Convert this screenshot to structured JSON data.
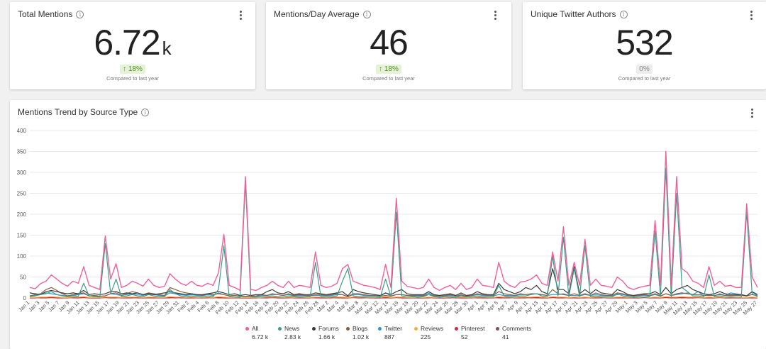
{
  "kpis": [
    {
      "title": "Total Mentions",
      "value": "6.72",
      "unit": "k",
      "change": "↑ 18%",
      "change_type": "up",
      "compare": "Compared to last year"
    },
    {
      "title": "Mentions/Day Average",
      "value": "46",
      "unit": "",
      "change": "↑ 18%",
      "change_type": "up",
      "compare": "Compared to last year"
    },
    {
      "title": "Unique Twitter Authors",
      "value": "532",
      "unit": "",
      "change": "0%",
      "change_type": "neutral",
      "compare": "Compared to last year"
    }
  ],
  "trend": {
    "title": "Mentions Trend by Source Type"
  },
  "legend": [
    {
      "name": "All",
      "total": "6.72 k",
      "color": "#f0619a"
    },
    {
      "name": "News",
      "total": "2.83 k",
      "color": "#3d9c8c"
    },
    {
      "name": "Forums",
      "total": "1.66 k",
      "color": "#3a3a3a"
    },
    {
      "name": "Blogs",
      "total": "1.02 k",
      "color": "#8b5e3c"
    },
    {
      "name": "Twitter",
      "total": "887",
      "color": "#2f97d8"
    },
    {
      "name": "Reviews",
      "total": "225",
      "color": "#f0b040"
    },
    {
      "name": "Pinterest",
      "total": "52",
      "color": "#e0223d"
    },
    {
      "name": "Comments",
      "total": "41",
      "color": "#7a5063"
    }
  ],
  "chart_data": {
    "type": "line",
    "ylim": [
      0,
      400
    ],
    "yticks": [
      0,
      50,
      100,
      150,
      200,
      250,
      300,
      350,
      400
    ],
    "grid": true,
    "legend_position": "bottom",
    "xtick_labels": [
      "Jan 1",
      "Jan 3",
      "Jan 5",
      "Jan 7",
      "Jan 9",
      "Jan 11",
      "Jan 13",
      "Jan 15",
      "Jan 17",
      "Jan 19",
      "Jan 21",
      "Jan 23",
      "Jan 25",
      "Jan 27",
      "Jan 29",
      "Jan 31",
      "Feb 2",
      "Feb 4",
      "Feb 6",
      "Feb 8",
      "Feb 10",
      "Feb 12",
      "Feb 14",
      "Feb 16",
      "Feb 18",
      "Feb 20",
      "Feb 22",
      "Feb 24",
      "Feb 26",
      "Feb 28",
      "Mar 2",
      "Mar 4",
      "Mar 6",
      "Mar 8",
      "Mar 10",
      "Mar 12",
      "Mar 14",
      "Mar 16",
      "Mar 18",
      "Mar 20",
      "Mar 22",
      "Mar 24",
      "Mar 26",
      "Mar 28",
      "Mar 30",
      "Apr 1",
      "Apr 3",
      "Apr 5",
      "Apr 7",
      "Apr 9",
      "Apr 11",
      "Apr 13",
      "Apr 15",
      "Apr 17",
      "Apr 19",
      "Apr 21",
      "Apr 23",
      "Apr 25",
      "Apr 27",
      "Apr 29",
      "May 1",
      "May 3",
      "May 5",
      "May 7",
      "May 9",
      "May 11",
      "May 13",
      "May 15",
      "May 17",
      "May 19",
      "May 21",
      "May 23",
      "May 25",
      "May 27"
    ],
    "series": [
      {
        "name": "All",
        "color": "#f0619a",
        "values": [
          25,
          22,
          34,
          40,
          55,
          45,
          35,
          28,
          40,
          35,
          75,
          30,
          25,
          20,
          148,
          45,
          82,
          25,
          30,
          40,
          35,
          28,
          45,
          30,
          25,
          28,
          58,
          45,
          35,
          30,
          40,
          30,
          28,
          35,
          30,
          60,
          152,
          30,
          25,
          18,
          290,
          20,
          18,
          25,
          30,
          40,
          30,
          25,
          40,
          25,
          30,
          28,
          25,
          110,
          30,
          25,
          28,
          35,
          70,
          80,
          40,
          35,
          30,
          28,
          25,
          20,
          80,
          25,
          238,
          40,
          28,
          25,
          22,
          25,
          45,
          25,
          18,
          25,
          30,
          20,
          35,
          20,
          25,
          45,
          30,
          28,
          25,
          85,
          40,
          30,
          25,
          38,
          40,
          45,
          55,
          35,
          30,
          110,
          40,
          170,
          30,
          85,
          30,
          140,
          30,
          45,
          30,
          28,
          25,
          50,
          40,
          25,
          20,
          25,
          28,
          30,
          185,
          30,
          350,
          30,
          290,
          70,
          60,
          40,
          35,
          25,
          75,
          30,
          40,
          28,
          30,
          25,
          25,
          225,
          50,
          25
        ]
      },
      {
        "name": "News",
        "color": "#3d9c8c",
        "values": [
          3,
          5,
          8,
          10,
          15,
          8,
          5,
          3,
          5,
          4,
          35,
          5,
          3,
          2,
          130,
          10,
          45,
          3,
          5,
          8,
          5,
          3,
          8,
          5,
          3,
          3,
          20,
          10,
          5,
          3,
          5,
          3,
          2,
          5,
          3,
          20,
          125,
          3,
          2,
          1,
          275,
          2,
          2,
          3,
          3,
          5,
          3,
          2,
          5,
          3,
          3,
          2,
          3,
          85,
          3,
          2,
          3,
          5,
          40,
          70,
          5,
          3,
          3,
          2,
          2,
          1,
          45,
          3,
          205,
          5,
          2,
          3,
          1,
          3,
          8,
          3,
          1,
          3,
          3,
          1,
          5,
          2,
          2,
          5,
          3,
          2,
          2,
          30,
          5,
          3,
          2,
          5,
          5,
          8,
          10,
          5,
          3,
          100,
          5,
          145,
          3,
          70,
          3,
          125,
          3,
          5,
          3,
          2,
          2,
          10,
          5,
          2,
          1,
          2,
          2,
          3,
          160,
          3,
          310,
          3,
          250,
          25,
          15,
          5,
          5,
          2,
          55,
          3,
          5,
          2,
          3,
          2,
          2,
          205,
          10,
          3
        ]
      },
      {
        "name": "Forums",
        "color": "#3a3a3a",
        "values": [
          12,
          10,
          8,
          15,
          18,
          15,
          12,
          10,
          12,
          10,
          18,
          8,
          10,
          8,
          10,
          15,
          15,
          10,
          12,
          10,
          12,
          8,
          10,
          8,
          10,
          12,
          15,
          12,
          10,
          8,
          10,
          8,
          8,
          10,
          12,
          15,
          12,
          8,
          10,
          6,
          8,
          6,
          8,
          8,
          15,
          20,
          12,
          10,
          15,
          8,
          10,
          8,
          8,
          12,
          10,
          8,
          10,
          12,
          15,
          5,
          20,
          15,
          12,
          10,
          8,
          6,
          12,
          8,
          15,
          20,
          10,
          8,
          8,
          8,
          15,
          8,
          6,
          8,
          10,
          6,
          12,
          6,
          8,
          15,
          10,
          8,
          8,
          35,
          20,
          15,
          10,
          15,
          25,
          20,
          30,
          15,
          10,
          70,
          20,
          20,
          10,
          75,
          10,
          20,
          10,
          20,
          12,
          10,
          8,
          20,
          15,
          8,
          6,
          8,
          10,
          10,
          15,
          8,
          25,
          10,
          20,
          25,
          30,
          20,
          15,
          10,
          8,
          10,
          15,
          10,
          8,
          8,
          8,
          5,
          15,
          8
        ]
      },
      {
        "name": "Blogs",
        "color": "#8b5e3c",
        "values": [
          5,
          8,
          10,
          20,
          25,
          18,
          10,
          5,
          8,
          10,
          12,
          5,
          6,
          4,
          5,
          10,
          12,
          6,
          10,
          15,
          12,
          8,
          12,
          10,
          8,
          6,
          25,
          20,
          15,
          12,
          10,
          8,
          6,
          10,
          8,
          10,
          8,
          5,
          6,
          4,
          3,
          4,
          5,
          8,
          6,
          10,
          8,
          6,
          10,
          6,
          8,
          6,
          6,
          8,
          8,
          6,
          8,
          10,
          8,
          3,
          10,
          10,
          8,
          6,
          6,
          4,
          6,
          4,
          8,
          8,
          6,
          6,
          6,
          6,
          8,
          6,
          4,
          6,
          8,
          4,
          8,
          4,
          6,
          10,
          8,
          6,
          6,
          15,
          10,
          8,
          6,
          10,
          8,
          10,
          10,
          8,
          6,
          20,
          10,
          8,
          6,
          10,
          6,
          10,
          6,
          12,
          8,
          6,
          6,
          12,
          10,
          6,
          4,
          6,
          8,
          6,
          10,
          5,
          10,
          6,
          10,
          12,
          10,
          8,
          8,
          6,
          6,
          6,
          8,
          6,
          6,
          6,
          6,
          5,
          8,
          5
        ]
      },
      {
        "name": "Twitter",
        "color": "#2f97d8",
        "values": [
          5,
          6,
          8,
          12,
          10,
          8,
          6,
          5,
          6,
          8,
          10,
          5,
          5,
          4,
          5,
          10,
          8,
          6,
          8,
          10,
          8,
          6,
          10,
          8,
          6,
          5,
          12,
          10,
          8,
          6,
          8,
          6,
          5,
          8,
          6,
          12,
          8,
          5,
          6,
          4,
          4,
          4,
          4,
          6,
          6,
          8,
          8,
          6,
          8,
          5,
          6,
          5,
          5,
          6,
          6,
          5,
          6,
          8,
          8,
          3,
          8,
          8,
          6,
          5,
          5,
          4,
          12,
          5,
          8,
          8,
          6,
          5,
          4,
          5,
          12,
          5,
          4,
          5,
          6,
          4,
          6,
          4,
          5,
          8,
          6,
          5,
          5,
          8,
          6,
          6,
          5,
          8,
          8,
          10,
          10,
          8,
          6,
          8,
          8,
          10,
          6,
          6,
          5,
          8,
          6,
          8,
          6,
          5,
          5,
          8,
          8,
          5,
          4,
          5,
          6,
          5,
          8,
          4,
          10,
          6,
          8,
          10,
          12,
          8,
          15,
          5,
          8,
          5,
          10,
          6,
          12,
          10,
          8,
          5,
          15,
          5
        ]
      },
      {
        "name": "Reviews",
        "color": "#f0b040",
        "values": [
          1,
          1,
          2,
          2,
          3,
          2,
          1,
          1,
          2,
          2,
          3,
          1,
          1,
          1,
          2,
          2,
          2,
          1,
          2,
          2,
          2,
          1,
          2,
          2,
          1,
          1,
          3,
          2,
          2,
          1,
          2,
          1,
          1,
          2,
          1,
          3,
          2,
          1,
          1,
          1,
          1,
          1,
          1,
          1,
          2,
          2,
          2,
          1,
          2,
          1,
          2,
          1,
          1,
          2,
          2,
          1,
          2,
          2,
          2,
          1,
          2,
          2,
          2,
          1,
          1,
          1,
          3,
          1,
          2,
          2,
          1,
          1,
          1,
          1,
          2,
          1,
          1,
          1,
          2,
          1,
          2,
          1,
          1,
          2,
          2,
          1,
          1,
          3,
          2,
          2,
          1,
          2,
          2,
          2,
          3,
          2,
          1,
          3,
          2,
          2,
          1,
          2,
          1,
          2,
          1,
          2,
          2,
          1,
          1,
          2,
          2,
          1,
          1,
          1,
          2,
          1,
          2,
          1,
          3,
          2,
          2,
          3,
          2,
          2,
          2,
          1,
          2,
          1,
          2,
          1,
          2,
          1,
          1,
          1,
          2,
          1
        ]
      },
      {
        "name": "Pinterest",
        "color": "#e0223d",
        "values": [
          0,
          0,
          1,
          0,
          1,
          0,
          0,
          0,
          1,
          0,
          1,
          0,
          0,
          0,
          1,
          0,
          1,
          0,
          0,
          1,
          0,
          0,
          1,
          0,
          0,
          0,
          1,
          0,
          1,
          0,
          0,
          0,
          0,
          1,
          0,
          1,
          0,
          0,
          0,
          0,
          0,
          0,
          0,
          1,
          0,
          1,
          0,
          0,
          1,
          0,
          0,
          0,
          0,
          1,
          0,
          0,
          0,
          1,
          0,
          0,
          1,
          0,
          1,
          0,
          0,
          0,
          1,
          0,
          1,
          0,
          0,
          0,
          0,
          0,
          1,
          0,
          0,
          0,
          1,
          0,
          0,
          0,
          0,
          1,
          0,
          0,
          0,
          1,
          0,
          1,
          0,
          0,
          1,
          0,
          1,
          0,
          0,
          1,
          0,
          1,
          0,
          0,
          0,
          1,
          0,
          0,
          1,
          0,
          0,
          1,
          0,
          0,
          0,
          0,
          1,
          0,
          1,
          0,
          1,
          0,
          1,
          0,
          1,
          0,
          1,
          0,
          0,
          0,
          1,
          0,
          0,
          0,
          0,
          1,
          0,
          0
        ]
      },
      {
        "name": "Comments",
        "color": "#7a5063",
        "values": [
          0,
          1,
          0,
          0,
          1,
          0,
          0,
          1,
          0,
          0,
          1,
          0,
          0,
          0,
          1,
          0,
          0,
          1,
          0,
          0,
          1,
          0,
          0,
          0,
          1,
          0,
          0,
          1,
          0,
          0,
          0,
          1,
          0,
          0,
          1,
          0,
          0,
          0,
          1,
          0,
          0,
          0,
          1,
          0,
          0,
          1,
          0,
          0,
          0,
          1,
          0,
          0,
          1,
          0,
          0,
          0,
          1,
          0,
          0,
          0,
          1,
          0,
          0,
          1,
          0,
          0,
          0,
          0,
          1,
          0,
          0,
          1,
          0,
          0,
          0,
          1,
          0,
          0,
          0,
          1,
          0,
          0,
          1,
          0,
          0,
          0,
          1,
          0,
          0,
          0,
          1,
          0,
          0,
          1,
          0,
          0,
          0,
          1,
          0,
          0,
          1,
          0,
          0,
          0,
          1,
          0,
          0,
          1,
          0,
          0,
          0,
          1,
          0,
          0,
          1,
          0,
          0,
          0,
          1,
          0,
          0,
          1,
          0,
          0,
          1,
          0,
          0,
          0,
          1,
          0,
          0,
          1,
          0,
          0,
          0,
          1
        ]
      }
    ]
  }
}
